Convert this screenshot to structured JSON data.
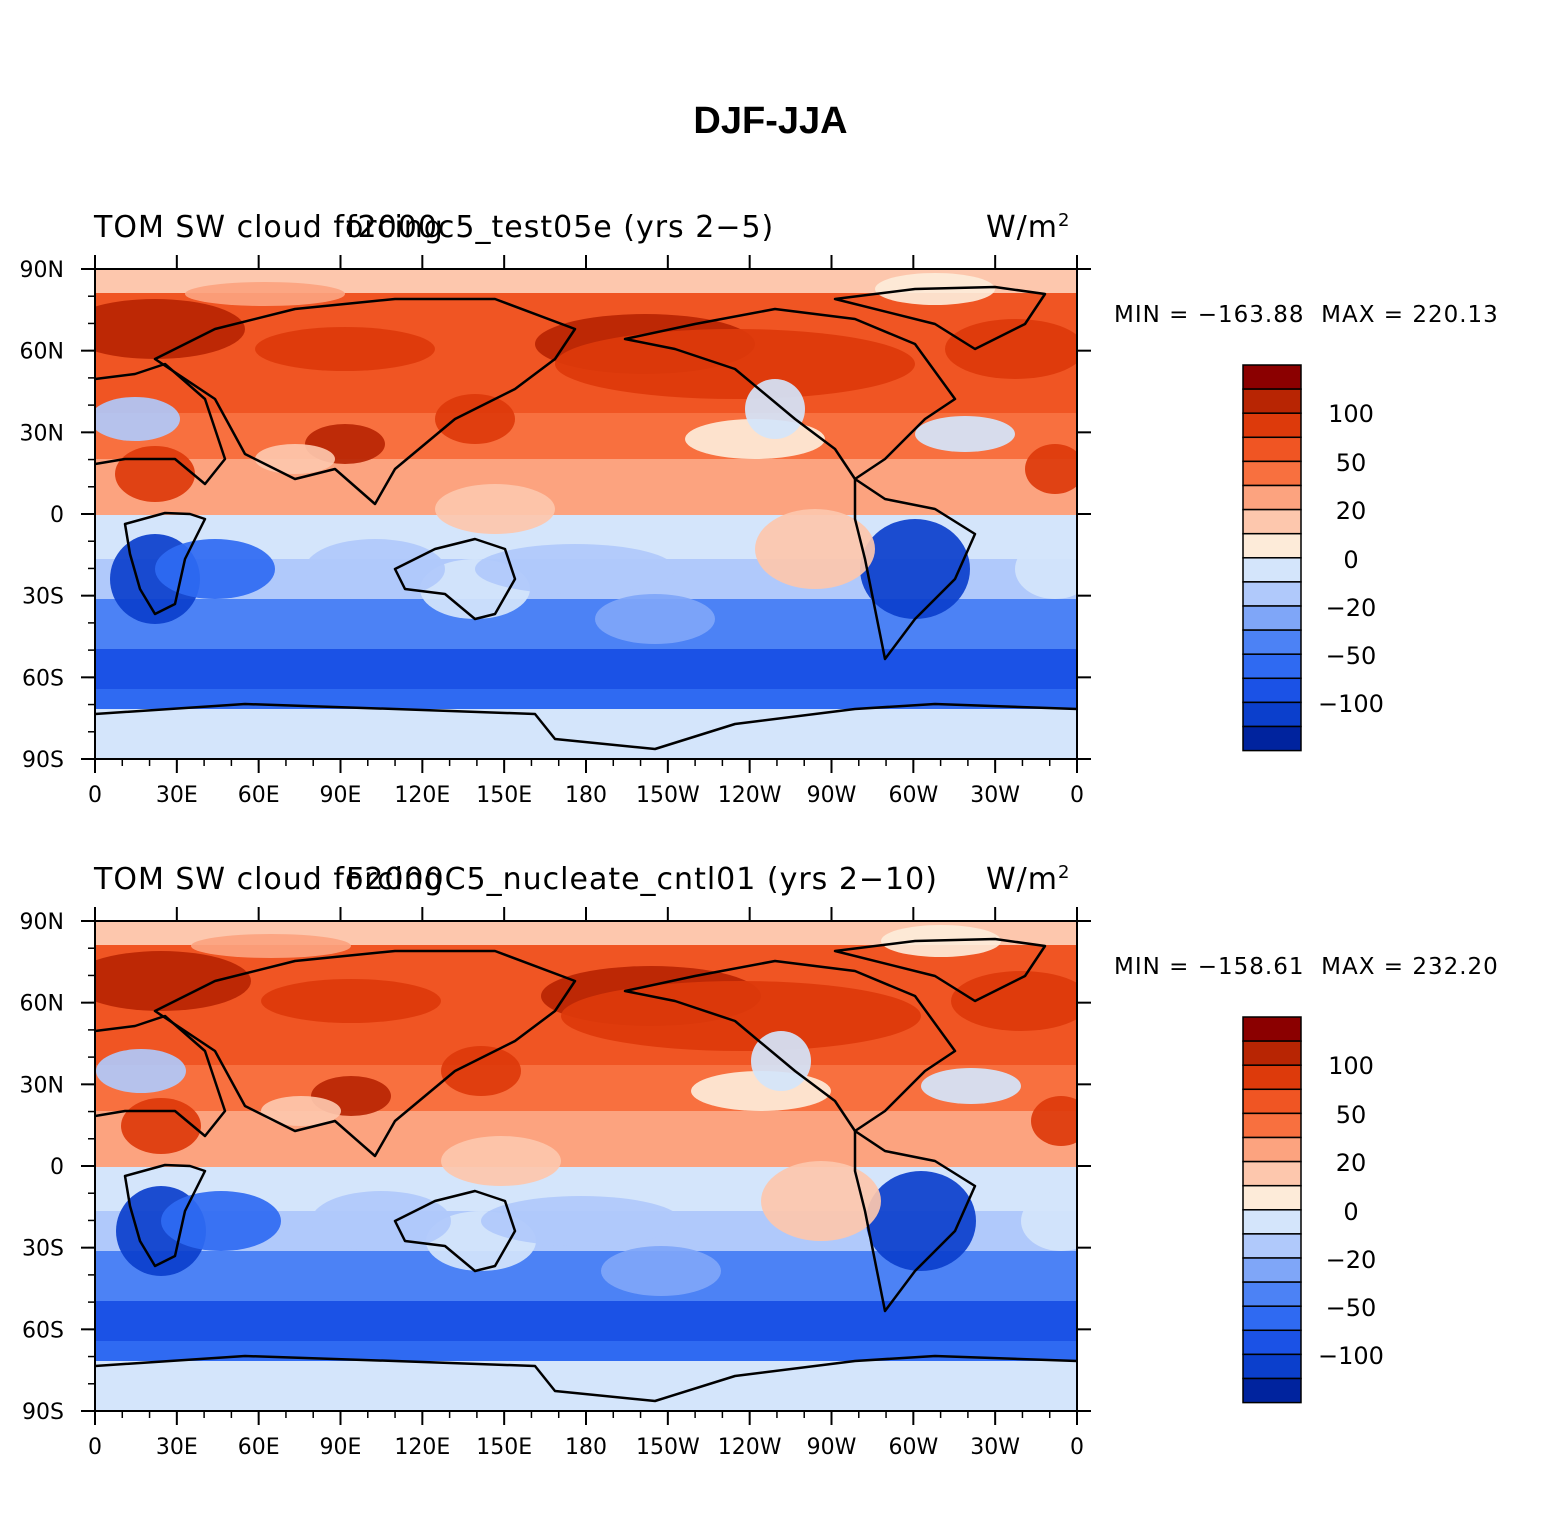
{
  "figure": {
    "title": "DJF-JJA"
  },
  "colors": {
    "levels": [
      "#00008b",
      "#00239e",
      "#0b3fcc",
      "#1b52e6",
      "#2f6af2",
      "#4c82f5",
      "#7fa6f8",
      "#b0c9fb",
      "#d4e5fb",
      "#fdebd9",
      "#fdc7ad",
      "#fca37f",
      "#f8703f",
      "#f05523",
      "#dd3a0b",
      "#b82503",
      "#8b0000"
    ],
    "coastline": "#000000",
    "background": "#ffffff"
  },
  "colorbar": {
    "labels": [
      "100",
      "50",
      "20",
      "0",
      "−20",
      "−50",
      "−100"
    ]
  },
  "axes": {
    "lat_ticks": [
      "90N",
      "60N",
      "30N",
      "0",
      "30S",
      "60S",
      "90S"
    ],
    "lon_ticks": [
      "0",
      "30E",
      "60E",
      "90E",
      "120E",
      "150E",
      "180",
      "150W",
      "120W",
      "90W",
      "60W",
      "30W",
      "0"
    ]
  },
  "panels": [
    {
      "left_title": "TOM SW cloud forcing",
      "center_title": "f2000c5_test05e (yrs 2−5)",
      "units": "W/m",
      "units_sup": "2",
      "min_label": "MIN = −163.88",
      "max_label": "MAX = 220.13"
    },
    {
      "left_title": "TOM SW cloud forcing",
      "center_title": "F2000C5_nucleate_cntl01 (yrs 2−10)",
      "units": "W/m",
      "units_sup": "2",
      "min_label": "MIN = −158.61",
      "max_label": "MAX = 232.20"
    }
  ]
}
